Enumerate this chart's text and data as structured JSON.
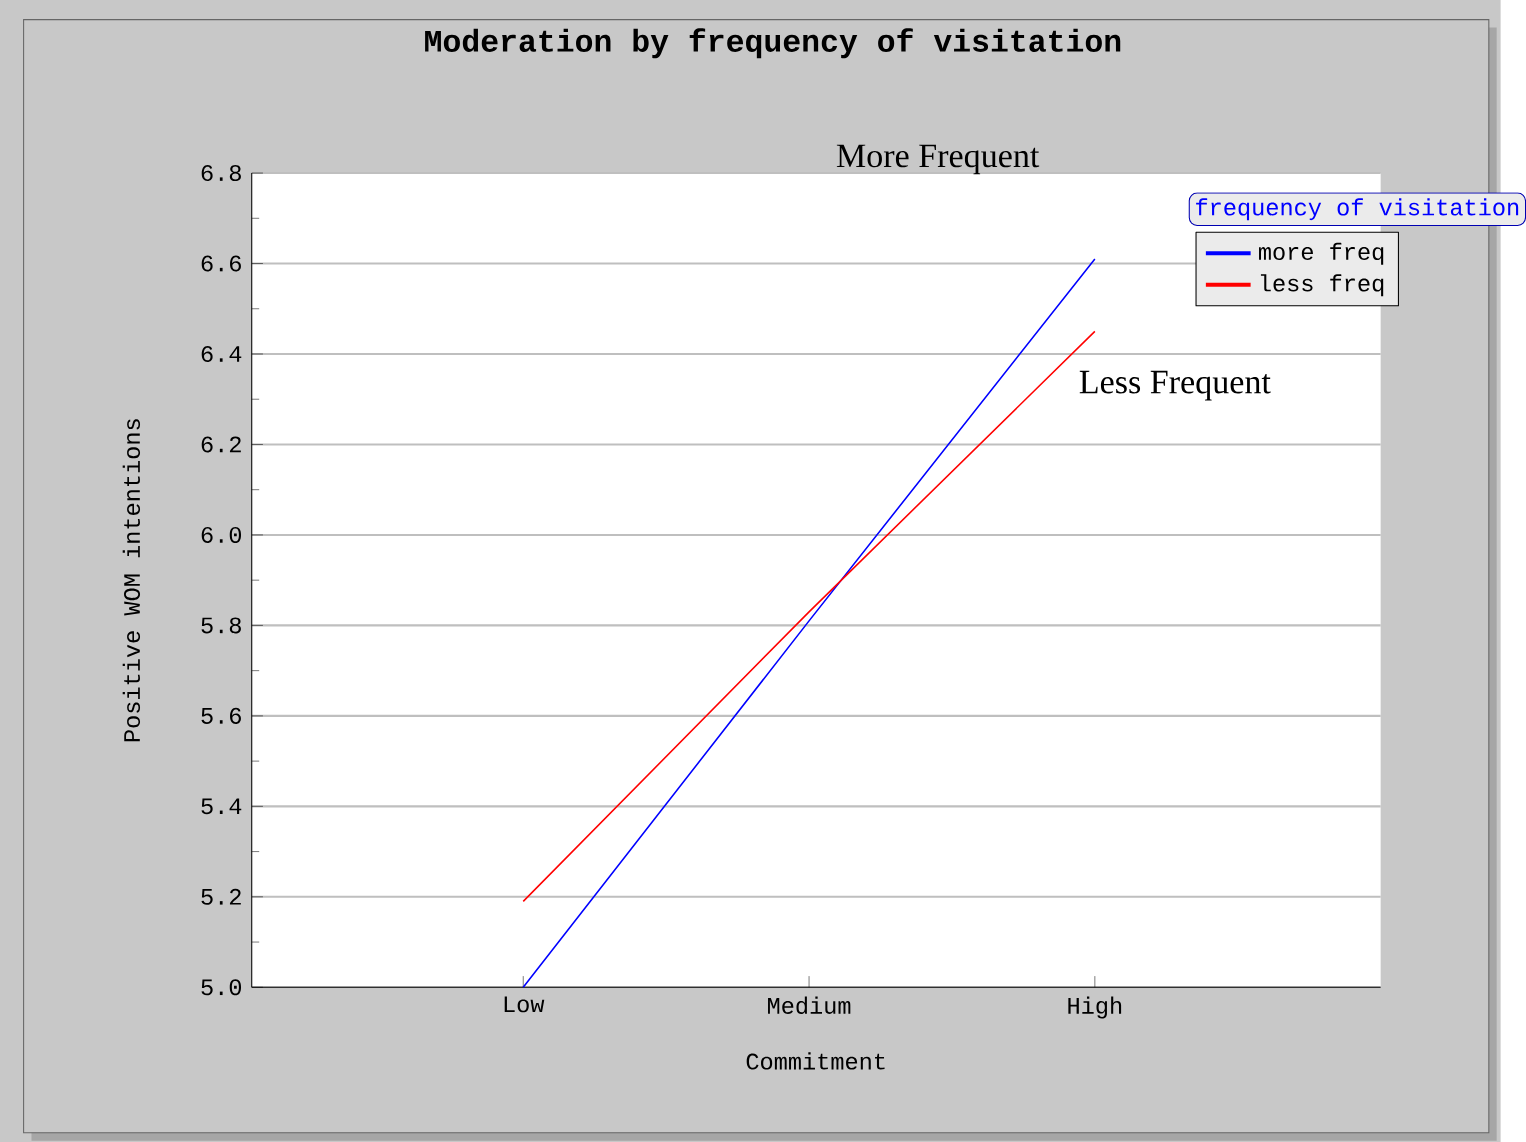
{
  "chart_data": {
    "type": "line",
    "title": "Moderation by frequency of visitation",
    "xlabel": "Commitment",
    "ylabel": "Positive WOM intentions",
    "legend_title": "frequency of visitation",
    "categories": [
      "Low",
      "Medium",
      "High"
    ],
    "series": [
      {
        "name": "more freq",
        "color": "#0000ff",
        "values": [
          5.0,
          5.81,
          6.61
        ]
      },
      {
        "name": "less freq",
        "color": "#ff0000",
        "values": [
          5.19,
          5.83,
          6.45
        ]
      }
    ],
    "ylim": [
      5.0,
      6.8
    ],
    "yticks": [
      {
        "value": 5.0,
        "label": "5.0"
      },
      {
        "value": 5.2,
        "label": "5.2"
      },
      {
        "value": 5.4,
        "label": "5.4"
      },
      {
        "value": 5.6,
        "label": "5.6"
      },
      {
        "value": 5.8,
        "label": "5.8"
      },
      {
        "value": 6.0,
        "label": "6.0"
      },
      {
        "value": 6.2,
        "label": "6.2"
      },
      {
        "value": 6.4,
        "label": "6.4"
      },
      {
        "value": 6.6,
        "label": "6.6"
      },
      {
        "value": 6.8,
        "label": "6.8"
      }
    ],
    "grid": "y",
    "legend": "top right",
    "marker": "none",
    "line_style": "solid",
    "annotations": [
      "More Frequent",
      "Less Frequent"
    ]
  }
}
